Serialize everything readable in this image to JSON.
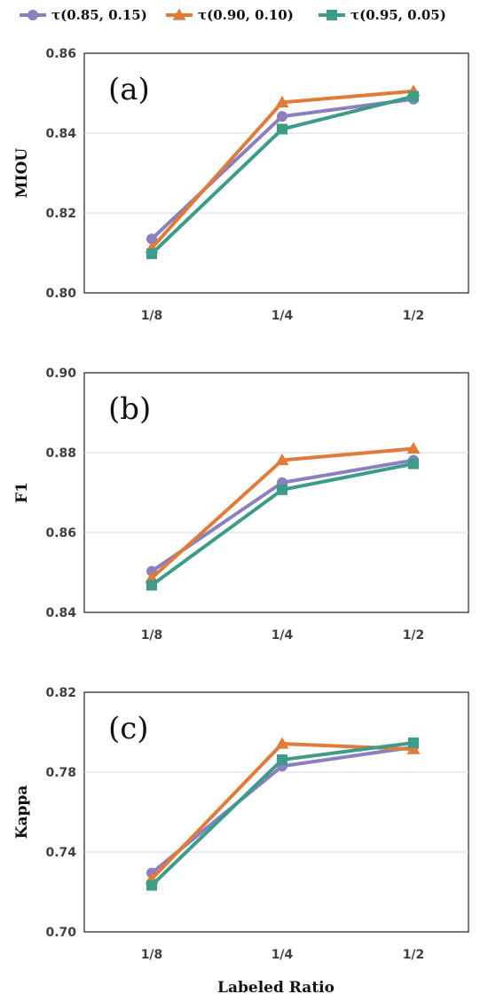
{
  "chart_data": {
    "type": "line",
    "xlabel": "Labeled Ratio",
    "categories": [
      "1/8",
      "1/4",
      "1/2"
    ],
    "legend": {
      "placement": "top"
    },
    "series_styles": [
      {
        "name": "τ(0.85, 0.15)",
        "color": "#8c7fc0",
        "marker": "circle"
      },
      {
        "name": "τ(0.90, 0.10)",
        "color": "#e07b39",
        "marker": "triangle"
      },
      {
        "name": "τ(0.95, 0.05)",
        "color": "#3d9b8a",
        "marker": "square"
      }
    ],
    "panels": [
      {
        "tag": "(a)",
        "ylabel": "MIOU",
        "ylim": [
          0.8,
          0.86
        ],
        "yticks": [
          "0.80",
          "0.82",
          "0.84",
          "0.86"
        ],
        "ytick_values": [
          0.8,
          0.82,
          0.84,
          0.86
        ],
        "grid": true,
        "series": [
          {
            "name": "τ(0.85, 0.15)",
            "values": [
              0.8135,
              0.8442,
              0.8485
            ]
          },
          {
            "name": "τ(0.90, 0.10)",
            "values": [
              0.8112,
              0.8477,
              0.8505
            ]
          },
          {
            "name": "τ(0.95, 0.05)",
            "values": [
              0.8098,
              0.841,
              0.8492
            ]
          }
        ]
      },
      {
        "tag": "(b)",
        "ylabel": "F1",
        "ylim": [
          0.84,
          0.9
        ],
        "yticks": [
          "0.84",
          "0.86",
          "0.88",
          "0.90"
        ],
        "ytick_values": [
          0.84,
          0.86,
          0.88,
          0.9
        ],
        "grid": true,
        "series": [
          {
            "name": "τ(0.85, 0.15)",
            "values": [
              0.8503,
              0.8725,
              0.8781
            ]
          },
          {
            "name": "τ(0.90, 0.10)",
            "values": [
              0.8486,
              0.8781,
              0.881
            ]
          },
          {
            "name": "τ(0.95, 0.05)",
            "values": [
              0.8468,
              0.8707,
              0.8772
            ]
          }
        ]
      },
      {
        "tag": "(c)",
        "ylabel": "Kappa",
        "ylim": [
          0.7,
          0.82
        ],
        "yticks": [
          "0.70",
          "0.74",
          "0.78",
          "0.82"
        ],
        "ytick_values": [
          0.7,
          0.74,
          0.78,
          0.82
        ],
        "grid": true,
        "series": [
          {
            "name": "τ(0.85, 0.15)",
            "values": [
              0.7295,
              0.783,
              0.7925
            ]
          },
          {
            "name": "τ(0.90, 0.10)",
            "values": [
              0.7265,
              0.7942,
              0.7915
            ]
          },
          {
            "name": "τ(0.95, 0.05)",
            "values": [
              0.7233,
              0.7862,
              0.7947
            ]
          }
        ]
      }
    ]
  }
}
